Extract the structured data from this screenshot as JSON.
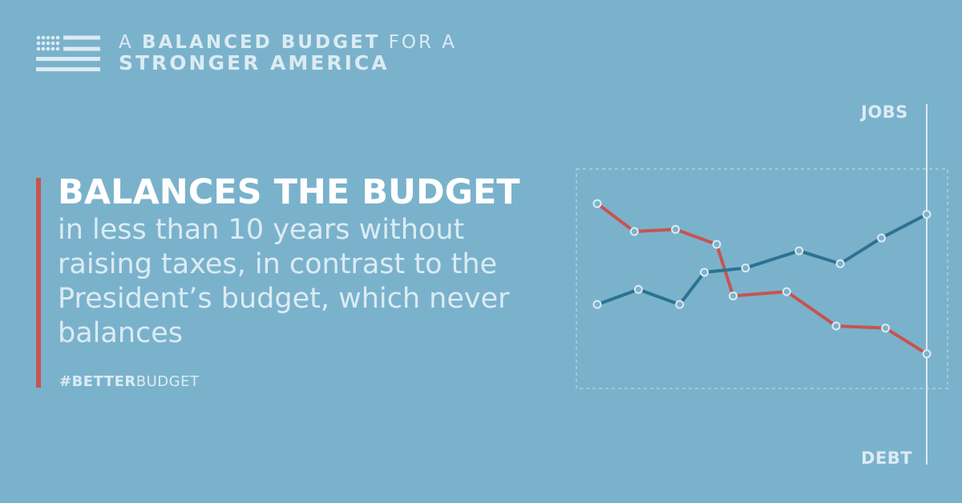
{
  "brand": {
    "line1_a": "A",
    "line1_b": "BALANCED BUDGET",
    "line1_c": "FOR A",
    "line2": "STRONGER AMERICA"
  },
  "headline": "BALANCES THE BUDGET",
  "body": "in less than 10 years without raising taxes, in contrast to the President’s budget, which never balances",
  "hashtag": {
    "bold": "#BETTER",
    "rest": "BUDGET"
  },
  "colors": {
    "background": "#7ab2cc",
    "accent_red": "#c75450",
    "jobs_line": "#2c7391",
    "debt_line": "#c75450",
    "light_text": "#dcebf3"
  },
  "chart_data": {
    "type": "line",
    "title": "",
    "xlabel": "",
    "ylabel": "",
    "axis_top_label": "JOBS",
    "axis_bottom_label": "DEBT",
    "grid": false,
    "legend": "none",
    "ylim": [
      0,
      100
    ],
    "series": [
      {
        "x": [
          0,
          1,
          2,
          3,
          4,
          5,
          6,
          7,
          8,
          9
        ],
        "values": [
          38,
          45,
          38,
          53,
          55,
          63,
          57,
          69,
          80,
          80
        ],
        "marker_x": [
          0,
          1,
          2,
          3,
          4,
          5,
          6,
          7,
          8
        ],
        "points": [
          [
            0,
            38
          ],
          [
            1,
            45
          ],
          [
            2,
            38
          ],
          [
            2.6,
            53
          ],
          [
            3.6,
            55
          ],
          [
            4.9,
            63
          ],
          [
            5.9,
            57
          ],
          [
            6.9,
            69
          ],
          [
            8,
            80
          ]
        ]
      },
      {
        "points": [
          [
            0,
            85
          ],
          [
            0.9,
            72
          ],
          [
            1.9,
            73
          ],
          [
            2.9,
            66
          ],
          [
            3.3,
            42
          ],
          [
            4.6,
            44
          ],
          [
            5.8,
            28
          ],
          [
            7,
            27
          ],
          [
            8,
            15
          ]
        ]
      }
    ]
  }
}
